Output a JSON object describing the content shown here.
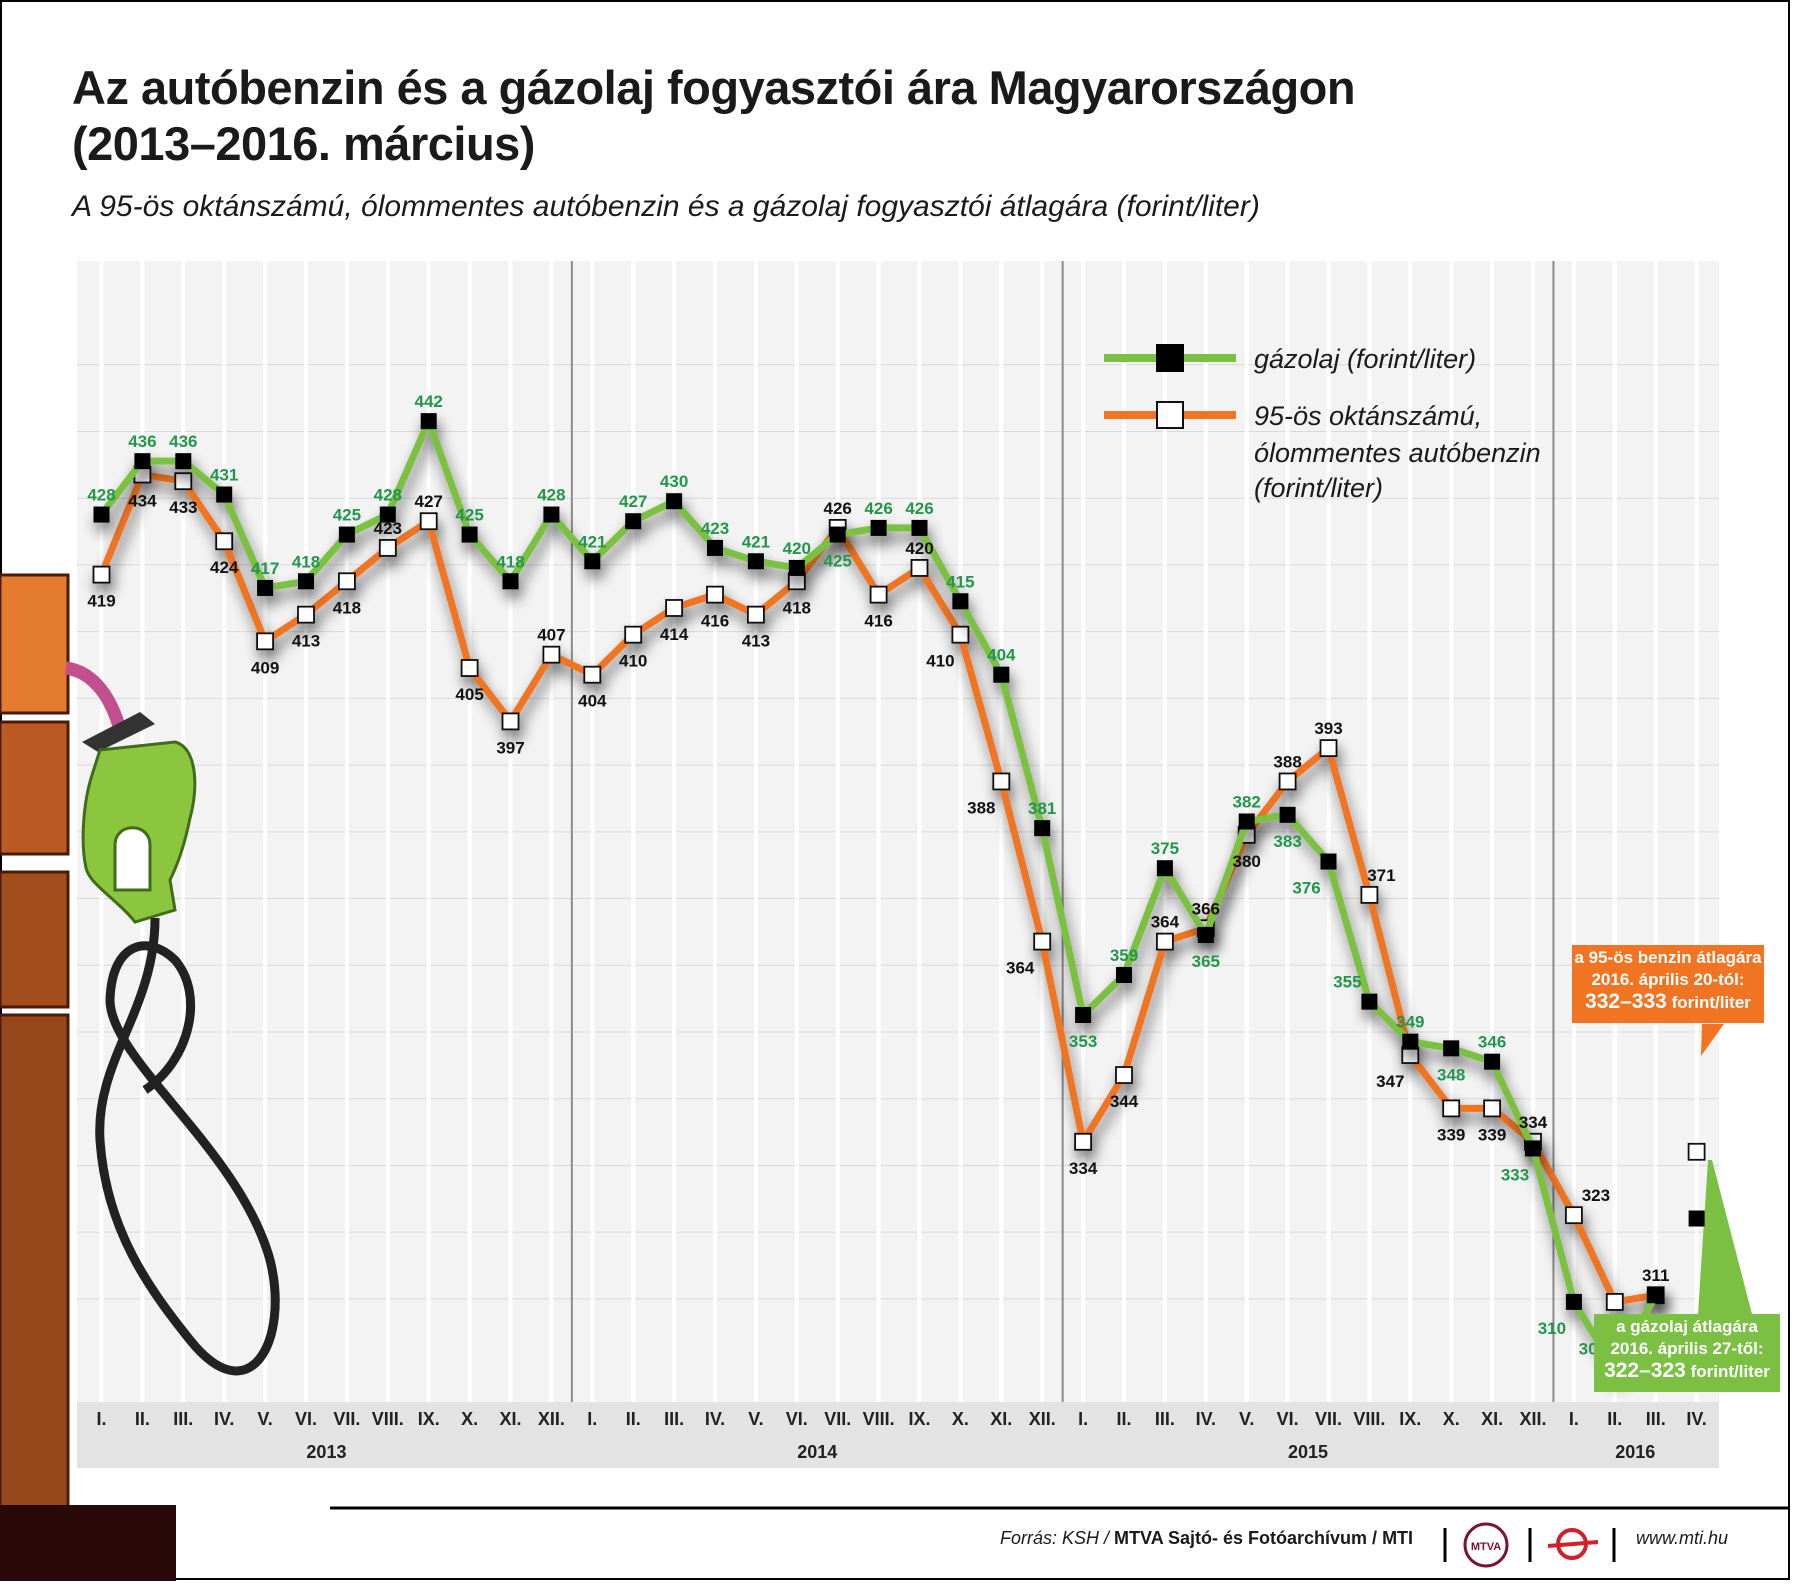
{
  "title_line1": "Az autóbenzin és a gázolaj fogyasztói ára Magyarországon",
  "title_line2": "(2013–2016. március)",
  "subtitle": "A 95-ös oktánszámú, ólommentes autóbenzin és a gázolaj fogyasztói átlagára (forint/liter)",
  "source_prefix": "Forrás: KSH / ",
  "source_org": "MTVA Sajtó- és Fotóarchívum / MTI",
  "logo_text": "MTVA",
  "website": "www.mti.hu",
  "colors": {
    "diesel": "#7bc043",
    "petrol": "#f07422",
    "diesel_label": "#22964a",
    "label": "#111111"
  },
  "callouts": {
    "benzin": {
      "line1": "a 95-ös benzin átlagára",
      "line2": "2016. április 20-tól:",
      "value": "332–333",
      "unit": " forint/liter"
    },
    "gazolaj": {
      "line1": "a gázolaj átlagára",
      "line2": "2016. április 27-től:",
      "value": "322–323",
      "unit": " forint/liter"
    }
  },
  "chart_data": {
    "type": "line",
    "title": "Az autóbenzin és a gázolaj fogyasztói ára Magyarországon (2013–2016. március)",
    "ylabel": "forint/liter",
    "ylim": [
      295,
      466
    ],
    "grid": true,
    "legend_position": "top-right",
    "years": [
      {
        "label": "2013",
        "start": 0,
        "end": 12
      },
      {
        "label": "2014",
        "start": 12,
        "end": 24
      },
      {
        "label": "2015",
        "start": 24,
        "end": 36
      },
      {
        "label": "2016",
        "start": 36,
        "end": 40
      }
    ],
    "categories": [
      "I.",
      "II.",
      "III.",
      "IV.",
      "V.",
      "VI.",
      "VII.",
      "VIII.",
      "IX.",
      "X.",
      "XI.",
      "XII.",
      "I.",
      "II.",
      "III.",
      "IV.",
      "V.",
      "VI.",
      "VII.",
      "VIII.",
      "IX.",
      "X.",
      "XI.",
      "XII.",
      "I.",
      "II.",
      "III.",
      "IV.",
      "V.",
      "VI.",
      "VII.",
      "VIII.",
      "IX.",
      "X.",
      "XI.",
      "XII.",
      "I.",
      "II.",
      "III.",
      "IV."
    ],
    "series": [
      {
        "name": "gázolaj (forint/liter)",
        "marker": "filled-square",
        "values": [
          428,
          436,
          436,
          431,
          417,
          418,
          425,
          428,
          442,
          425,
          418,
          428,
          421,
          427,
          430,
          423,
          421,
          420,
          425,
          426,
          426,
          415,
          404,
          381,
          353,
          359,
          375,
          365,
          382,
          383,
          376,
          355,
          349,
          348,
          346,
          333,
          310,
          300,
          311,
          null
        ]
      },
      {
        "name_line1": "95-ös oktánszámú,",
        "name_line2": "ólommentes autóbenzin",
        "name_line3": "(forint/liter)",
        "marker": "open-square",
        "values": [
          419,
          434,
          433,
          424,
          409,
          413,
          418,
          423,
          427,
          405,
          397,
          407,
          404,
          410,
          414,
          416,
          413,
          418,
          426,
          416,
          420,
          410,
          388,
          364,
          334,
          344,
          364,
          366,
          380,
          388,
          393,
          371,
          347,
          339,
          339,
          334,
          323,
          310,
          311,
          null
        ]
      }
    ],
    "projections": [
      {
        "series": "petrol",
        "category_index": 39,
        "value": 332.5,
        "range": "332–333"
      },
      {
        "series": "diesel",
        "category_index": 39,
        "value": 322.5,
        "range": "322–323"
      }
    ]
  }
}
